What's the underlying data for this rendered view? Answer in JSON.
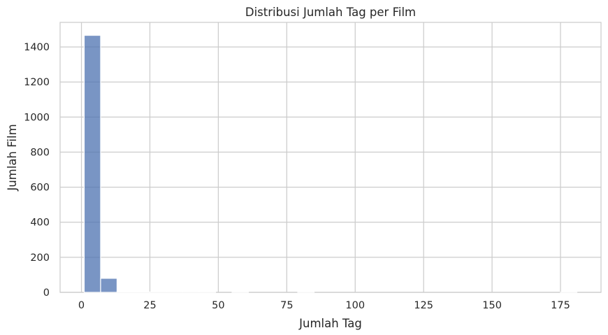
{
  "chart_data": {
    "type": "bar",
    "title": "Distribusi Jumlah Tag per Film",
    "xlabel": "Jumlah Tag",
    "ylabel": "Jumlah Film",
    "xlim": [
      -7.8,
      189.8
    ],
    "ylim": [
      0,
      1540
    ],
    "x_ticks": [
      0,
      25,
      50,
      75,
      100,
      125,
      150,
      175
    ],
    "x_tick_labels": [
      "0",
      "25",
      "50",
      "75",
      "100",
      "125",
      "150",
      "175"
    ],
    "y_ticks": [
      0,
      200,
      400,
      600,
      800,
      1000,
      1200,
      1400
    ],
    "y_tick_labels": [
      "0",
      "200",
      "400",
      "600",
      "800",
      "1000",
      "1200",
      "1400"
    ],
    "grid": true,
    "bin_edges": [
      1,
      7,
      13,
      19,
      25,
      31,
      37,
      43,
      49,
      55,
      61,
      67,
      73,
      79,
      85,
      91,
      97,
      103,
      109,
      115,
      121,
      127,
      133,
      139,
      145,
      151,
      157,
      163,
      169,
      175,
      181
    ],
    "counts": [
      1466,
      80,
      4,
      2,
      1,
      1,
      1,
      1,
      0,
      1,
      0,
      0,
      0,
      1,
      0,
      0,
      0,
      0,
      0,
      0,
      0,
      0,
      0,
      0,
      0,
      0,
      0,
      0,
      0,
      1
    ],
    "colors": {
      "bar": "#4c72b0",
      "grid": "#cccccc",
      "text": "#262626"
    }
  }
}
